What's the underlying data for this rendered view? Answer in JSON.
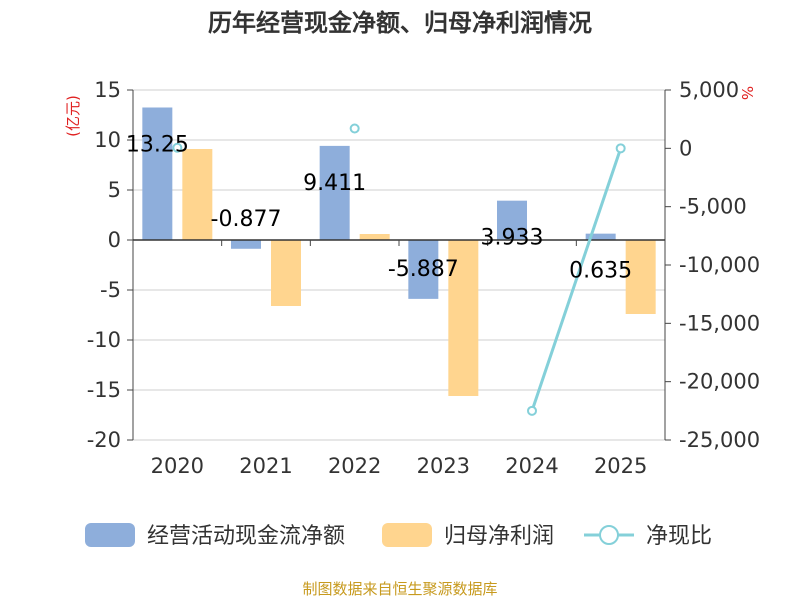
{
  "chart_data": {
    "type": "bar",
    "title": "历年经营现金净额、归母净利润情况",
    "categories": [
      "2020",
      "2021",
      "2022",
      "2023",
      "2024",
      "2025"
    ],
    "series": [
      {
        "name": "经营活动现金流净额",
        "type": "bar",
        "axis": "left",
        "color": "#8eaedb",
        "values": [
          13.25,
          -0.877,
          9.411,
          -5.887,
          3.933,
          0.635
        ],
        "labels": [
          "13.25",
          "-0.877",
          "9.411",
          "-5.887",
          "3.933",
          "0.635"
        ]
      },
      {
        "name": "归母净利润",
        "type": "bar",
        "axis": "left",
        "color": "#ffd58f",
        "values": [
          9.1,
          -6.6,
          0.6,
          -15.6,
          null,
          -7.4
        ]
      },
      {
        "name": "净现比",
        "type": "line",
        "axis": "right",
        "color": "#84d0d9",
        "values": [
          50,
          null,
          1700,
          null,
          -22500,
          0
        ]
      }
    ],
    "left_axis": {
      "unit": "(亿元)",
      "ylim": [
        -20,
        15
      ],
      "ticks": [
        "15",
        "10",
        "5",
        "0",
        "-5",
        "-10",
        "-15",
        "-20"
      ]
    },
    "right_axis": {
      "unit": "%",
      "ylim": [
        -25000,
        5000
      ],
      "ticks": [
        "5,000",
        "0",
        "-5,000",
        "-10,000",
        "-15,000",
        "-20,000",
        "-25,000"
      ]
    },
    "grid": true,
    "legend_position": "bottom",
    "source": "制图数据来自恒生聚源数据库"
  }
}
